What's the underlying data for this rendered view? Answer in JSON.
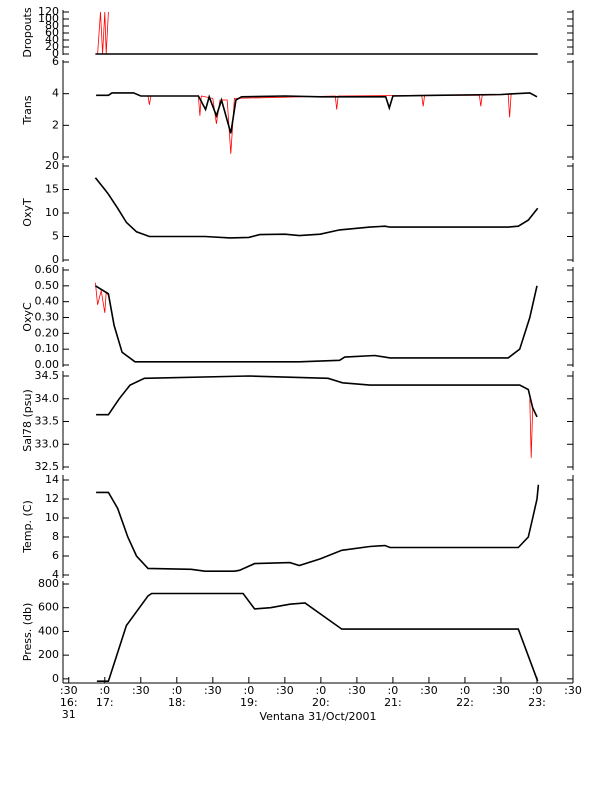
{
  "chart_data": [
    {
      "type": "line",
      "ylabel": "Dropouts",
      "xlim": [
        16.42,
        23.5
      ],
      "ylim": [
        0,
        120
      ],
      "yticks": [
        0,
        20,
        40,
        60,
        80,
        100,
        120
      ],
      "series": [
        {
          "color": "#ff0000",
          "x": [
            16.9,
            16.94,
            16.97,
            17.0,
            17.02,
            17.05
          ],
          "values": [
            0,
            120,
            0,
            120,
            0,
            120
          ]
        },
        {
          "color": "#000000",
          "x": [
            16.87,
            17.0,
            17.5,
            18.0,
            18.5,
            19.0,
            19.5,
            20.0,
            20.5,
            21.0,
            21.5,
            22.0,
            22.5,
            23.01
          ],
          "values": [
            0,
            0,
            0,
            0,
            0,
            0,
            0,
            0,
            0,
            0,
            0,
            0,
            0,
            0
          ]
        }
      ]
    },
    {
      "type": "line",
      "ylabel": "Trans",
      "xlim": [
        16.42,
        23.5
      ],
      "ylim": [
        0,
        6
      ],
      "yticks": [
        0,
        2,
        4,
        6
      ],
      "series": [
        {
          "color": "#ff0000",
          "x": [
            17.6,
            17.62,
            17.64,
            18.3,
            18.32,
            18.34,
            18.5,
            18.55,
            18.6,
            18.7,
            18.75,
            18.8,
            20.2,
            20.22,
            20.24,
            21.4,
            21.42,
            21.44,
            22.2,
            22.22,
            22.24,
            22.6,
            22.62,
            22.64
          ],
          "values": [
            3.85,
            3.3,
            3.85,
            3.85,
            2.6,
            3.85,
            3.7,
            2.1,
            3.6,
            3.6,
            0.2,
            3.7,
            3.85,
            3.0,
            3.85,
            3.9,
            3.2,
            3.9,
            3.9,
            3.2,
            3.9,
            3.95,
            2.5,
            3.95
          ]
        },
        {
          "color": "#000000",
          "x": [
            16.88,
            17.05,
            17.1,
            17.4,
            17.5,
            18.3,
            18.4,
            18.45,
            18.55,
            18.62,
            18.75,
            18.82,
            18.9,
            19.5,
            20.0,
            20.9,
            20.95,
            21.0,
            21.6,
            22.5,
            22.9,
            23.0
          ],
          "values": [
            3.9,
            3.9,
            4.05,
            4.05,
            3.85,
            3.85,
            3.0,
            3.8,
            2.6,
            3.6,
            1.5,
            3.6,
            3.8,
            3.85,
            3.8,
            3.8,
            3.1,
            3.85,
            3.9,
            3.95,
            4.05,
            3.8
          ]
        }
      ]
    },
    {
      "type": "line",
      "ylabel": "OxyT",
      "xlim": [
        16.42,
        23.5
      ],
      "ylim": [
        0,
        20
      ],
      "yticks": [
        0,
        5,
        10,
        15,
        20
      ],
      "series": [
        {
          "color": "#000000",
          "x": [
            16.87,
            17.0,
            17.05,
            17.18,
            17.3,
            17.44,
            17.62,
            18.39,
            18.74,
            19.0,
            19.15,
            19.5,
            19.7,
            19.99,
            20.26,
            20.68,
            20.89,
            20.96,
            22.6,
            22.74,
            22.88,
            23.01
          ],
          "values": [
            17.5,
            15,
            14,
            11,
            8,
            6,
            5,
            5,
            4.7,
            4.8,
            5.4,
            5.5,
            5.2,
            5.5,
            6.4,
            7.0,
            7.2,
            7.0,
            7.0,
            7.2,
            8.5,
            11
          ]
        }
      ]
    },
    {
      "type": "line",
      "ylabel": "OxyC",
      "xlim": [
        16.42,
        23.5
      ],
      "ylim": [
        0,
        0.6
      ],
      "yticks": [
        {
          "value": 0,
          "label": "0.00"
        },
        {
          "value": 0.1,
          "label": "0.10"
        },
        {
          "value": 0.2,
          "label": "0.20"
        },
        {
          "value": 0.3,
          "label": "0.30"
        },
        {
          "value": 0.4,
          "label": "0.40"
        },
        {
          "value": 0.5,
          "label": "0.50"
        },
        {
          "value": 0.6,
          "label": "0.60"
        }
      ],
      "series": [
        {
          "color": "#ff0000",
          "x": [
            16.87,
            16.9,
            16.95,
            17.0,
            17.02,
            17.05
          ],
          "values": [
            0.52,
            0.38,
            0.47,
            0.33,
            0.46,
            0.44
          ]
        },
        {
          "color": "#000000",
          "x": [
            16.87,
            17.05,
            17.13,
            17.24,
            17.42,
            19.7,
            20.26,
            20.33,
            20.75,
            20.96,
            22.6,
            22.76,
            22.9,
            23.0
          ],
          "values": [
            0.5,
            0.45,
            0.25,
            0.08,
            0.02,
            0.02,
            0.03,
            0.05,
            0.06,
            0.045,
            0.045,
            0.1,
            0.3,
            0.5
          ]
        }
      ]
    },
    {
      "type": "line",
      "ylabel": "Sal78 (psu)",
      "xlim": [
        16.42,
        23.5
      ],
      "ylim": [
        32.5,
        34.5
      ],
      "yticks": [
        32.5,
        {
          "value": 33,
          "label": "33.0"
        },
        33.5,
        {
          "value": 34,
          "label": "34.0"
        },
        34.5
      ],
      "series": [
        {
          "color": "#ff0000",
          "x": [
            22.9,
            22.92,
            22.94
          ],
          "values": [
            34.0,
            32.7,
            33.8
          ]
        },
        {
          "color": "#000000",
          "x": [
            16.88,
            17.05,
            17.2,
            17.35,
            17.55,
            19.0,
            20.1,
            20.3,
            20.68,
            22.76,
            22.88,
            22.94,
            23.0
          ],
          "values": [
            33.65,
            33.65,
            34.0,
            34.3,
            34.45,
            34.5,
            34.45,
            34.35,
            34.3,
            34.3,
            34.2,
            33.8,
            33.6
          ]
        }
      ]
    },
    {
      "type": "line",
      "ylabel": "Temp. (C)",
      "xlim": [
        16.42,
        23.5
      ],
      "ylim": [
        4,
        14
      ],
      "yticks": [
        4,
        6,
        8,
        10,
        12,
        14
      ],
      "series": [
        {
          "color": "#000000",
          "x": [
            16.88,
            17.05,
            17.18,
            17.32,
            17.44,
            17.6,
            18.2,
            18.39,
            18.8,
            18.87,
            19.08,
            19.57,
            19.7,
            19.99,
            20.29,
            20.68,
            20.89,
            20.96,
            22.74,
            22.88,
            22.94,
            23.0,
            23.02
          ],
          "values": [
            12.7,
            12.7,
            11,
            8,
            6,
            4.7,
            4.6,
            4.4,
            4.4,
            4.5,
            5.2,
            5.3,
            5.0,
            5.7,
            6.6,
            7.0,
            7.1,
            6.9,
            6.9,
            8,
            10,
            12,
            13.5
          ]
        }
      ]
    },
    {
      "type": "line",
      "ylabel": "Press. (db)",
      "xlabel": "Ventana 31/Oct/2001",
      "xlim": [
        16.42,
        23.5
      ],
      "ylim": [
        -35,
        800
      ],
      "yticks": [
        0,
        200,
        400,
        600,
        800
      ],
      "xticks": [
        {
          "value": 16.5,
          "label": ":30"
        },
        {
          "value": 17,
          "label": ":0"
        },
        {
          "value": 17.5,
          "label": ":30"
        },
        {
          "value": 18,
          "label": ":0"
        },
        {
          "value": 18.5,
          "label": ":30"
        },
        {
          "value": 19,
          "label": ":0"
        },
        {
          "value": 19.5,
          "label": ":30"
        },
        {
          "value": 20,
          "label": ":0"
        },
        {
          "value": 20.5,
          "label": ":30"
        },
        {
          "value": 21,
          "label": ":0"
        },
        {
          "value": 21.5,
          "label": ":30"
        },
        {
          "value": 22,
          "label": ":0"
        },
        {
          "value": 22.5,
          "label": ":30"
        },
        {
          "value": 23,
          "label": ":0"
        },
        {
          "value": 23.5,
          "label": ":30"
        }
      ],
      "xtick_hours": [
        {
          "value": 16.5,
          "label": "16:"
        },
        {
          "value": 17,
          "label": "17:"
        },
        {
          "value": 18,
          "label": "18:"
        },
        {
          "value": 19,
          "label": "19:"
        },
        {
          "value": 20,
          "label": "20:"
        },
        {
          "value": 21,
          "label": "21:"
        },
        {
          "value": 22,
          "label": "22:"
        },
        {
          "value": 23,
          "label": "23:"
        }
      ],
      "xtick_day": {
        "value": 16.5,
        "label": "31"
      },
      "series": [
        {
          "color": "#000000",
          "x": [
            16.89,
            17.05,
            17.3,
            17.6,
            17.65,
            18.92,
            19.08,
            19.3,
            19.57,
            19.78,
            20.29,
            22.74,
            23.01
          ],
          "values": [
            -20,
            -20,
            450,
            700,
            720,
            720,
            590,
            600,
            630,
            640,
            420,
            420,
            -20
          ]
        }
      ]
    }
  ]
}
